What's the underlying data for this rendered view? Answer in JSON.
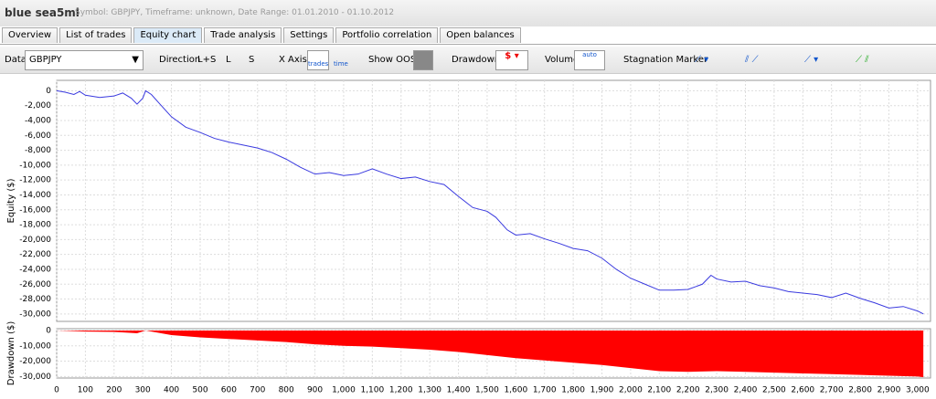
{
  "header": {
    "title": "blue sea5ml",
    "subtitle": "Symbol: GBPJPY, Timeframe: unknown, Date Range: 01.01.2010 - 01.10.2012"
  },
  "tabs": [
    "Overview",
    "List of trades",
    "Equity chart",
    "Trade analysis",
    "Settings",
    "Portfolio correlation",
    "Open balances"
  ],
  "toolbar": {
    "data_label": "Data",
    "data_value": "GBPJPY",
    "direction_label": "Direction",
    "direction_options": [
      "L+S",
      "L",
      "S"
    ],
    "x_axis_label": "X Axis",
    "x_axis_options": [
      "trades",
      "time"
    ],
    "show_oos_label": "Show OOS",
    "drawdown_label": "Drawdown",
    "volume_label": "Volume",
    "volume_option": "auto",
    "stagnation_label": "Stagnation Marker"
  },
  "chart_data": [
    {
      "type": "line",
      "ylabel": "Equity ($)",
      "color": "#3a3adf",
      "grid": true,
      "xlim": [
        0,
        3045
      ],
      "ylim": [
        -31000,
        1400
      ],
      "yticks": [
        0,
        {
          "value": -2000,
          "label": "-2,000"
        },
        {
          "value": -4000,
          "label": "-4,000"
        },
        {
          "value": -6000,
          "label": "-6,000"
        },
        {
          "value": -8000,
          "label": "-8,000"
        },
        {
          "value": -10000,
          "label": "-10,000"
        },
        {
          "value": -12000,
          "label": "-12,000"
        },
        {
          "value": -14000,
          "label": "-14,000"
        },
        {
          "value": -16000,
          "label": "-16,000"
        },
        {
          "value": -18000,
          "label": "-18,000"
        },
        {
          "value": -20000,
          "label": "-20,000"
        },
        {
          "value": -22000,
          "label": "-22,000"
        },
        {
          "value": -24000,
          "label": "-24,000"
        },
        {
          "value": -26000,
          "label": "-26,000"
        },
        {
          "value": -28000,
          "label": "-28,000"
        },
        {
          "value": -30000,
          "label": "-30,000"
        }
      ],
      "x": [
        0,
        30,
        60,
        80,
        100,
        150,
        200,
        230,
        260,
        280,
        300,
        310,
        330,
        360,
        400,
        450,
        500,
        550,
        600,
        650,
        700,
        750,
        800,
        850,
        900,
        950,
        1000,
        1050,
        1100,
        1150,
        1200,
        1250,
        1300,
        1350,
        1400,
        1450,
        1500,
        1530,
        1570,
        1600,
        1650,
        1700,
        1750,
        1800,
        1850,
        1900,
        1950,
        2000,
        2050,
        2100,
        2150,
        2200,
        2250,
        2280,
        2300,
        2350,
        2400,
        2450,
        2500,
        2550,
        2600,
        2650,
        2700,
        2750,
        2800,
        2850,
        2900,
        2950,
        3000,
        3020
      ],
      "values": [
        0,
        -200,
        -500,
        -100,
        -600,
        -900,
        -700,
        -300,
        -1000,
        -1800,
        -1000,
        0,
        -500,
        -1800,
        -3500,
        -4900,
        -5600,
        -6400,
        -6900,
        -7300,
        -7700,
        -8300,
        -9200,
        -10300,
        -11200,
        -11000,
        -11400,
        -11200,
        -10500,
        -11200,
        -11800,
        -11600,
        -12200,
        -12600,
        -14200,
        -15700,
        -16200,
        -17000,
        -18700,
        -19400,
        -19200,
        -19900,
        -20500,
        -21200,
        -21500,
        -22500,
        -24000,
        -25200,
        -26000,
        -26800,
        -26800,
        -26700,
        -26000,
        -24800,
        -25300,
        -25700,
        -25600,
        -26200,
        -26500,
        -27000,
        -27200,
        -27400,
        -27800,
        -27200,
        -27900,
        -28500,
        -29200,
        -29000,
        -29600,
        -30000
      ]
    },
    {
      "type": "area",
      "ylabel": "Drawdown ($)",
      "color": "#ff0000",
      "grid": true,
      "xlim": [
        0,
        3045
      ],
      "ylim": [
        -31000,
        1200
      ],
      "yticks": [
        0,
        {
          "value": -10000,
          "label": "-10,000"
        },
        {
          "value": -20000,
          "label": "-20,000"
        },
        {
          "value": -30000,
          "label": "-30,000"
        }
      ],
      "xticks": [
        0,
        100,
        200,
        300,
        400,
        500,
        600,
        700,
        800,
        900,
        {
          "value": 1000,
          "label": "1,000"
        },
        {
          "value": 1100,
          "label": "1,100"
        },
        {
          "value": 1200,
          "label": "1,200"
        },
        {
          "value": 1300,
          "label": "1,300"
        },
        {
          "value": 1400,
          "label": "1,400"
        },
        {
          "value": 1500,
          "label": "1,500"
        },
        {
          "value": 1600,
          "label": "1,600"
        },
        {
          "value": 1700,
          "label": "1,700"
        },
        {
          "value": 1800,
          "label": "1,800"
        },
        {
          "value": 1900,
          "label": "1,900"
        },
        {
          "value": 2000,
          "label": "2,000"
        },
        {
          "value": 2100,
          "label": "2,100"
        },
        {
          "value": 2200,
          "label": "2,200"
        },
        {
          "value": 2300,
          "label": "2,300"
        },
        {
          "value": 2400,
          "label": "2,400"
        },
        {
          "value": 2500,
          "label": "2,500"
        },
        {
          "value": 2600,
          "label": "2,600"
        },
        {
          "value": 2700,
          "label": "2,700"
        },
        {
          "value": 2800,
          "label": "2,800"
        },
        {
          "value": 2900,
          "label": "2,900"
        },
        {
          "value": 3000,
          "label": "3,000"
        }
      ],
      "x": [
        0,
        100,
        200,
        280,
        310,
        400,
        500,
        600,
        700,
        800,
        900,
        1000,
        1100,
        1200,
        1300,
        1400,
        1500,
        1600,
        1700,
        1800,
        1900,
        2000,
        2100,
        2200,
        2300,
        2400,
        2500,
        2600,
        2700,
        2800,
        2900,
        3000,
        3020
      ],
      "values": [
        0,
        -700,
        -900,
        -1800,
        0,
        -3000,
        -4500,
        -5500,
        -6500,
        -7500,
        -9000,
        -10000,
        -10500,
        -11500,
        -12500,
        -14000,
        -16000,
        -18000,
        -19500,
        -21000,
        -22500,
        -24500,
        -26500,
        -27000,
        -26500,
        -27000,
        -27500,
        -28000,
        -28500,
        -29000,
        -29500,
        -30000,
        -30500
      ]
    }
  ]
}
